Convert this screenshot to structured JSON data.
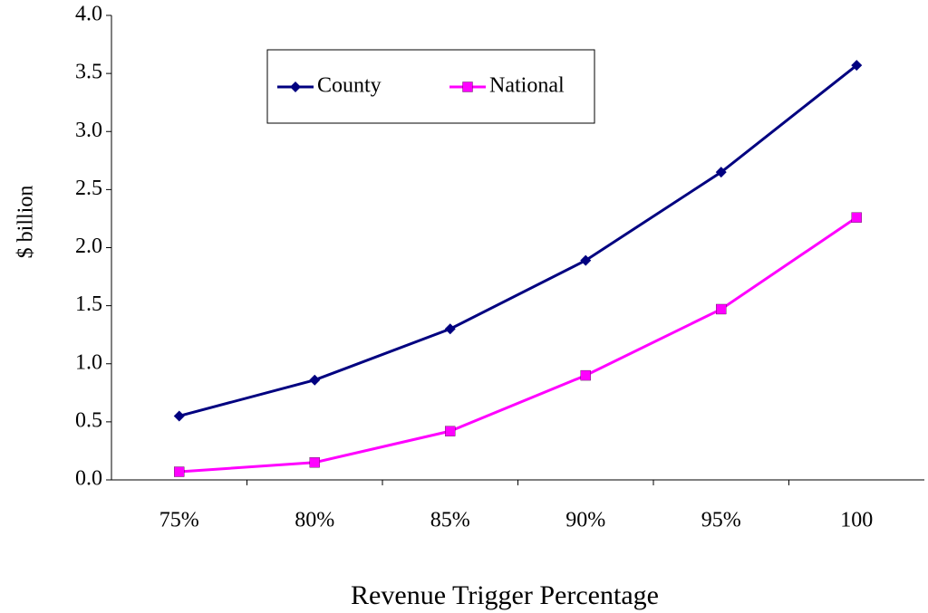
{
  "chart_data": {
    "type": "line",
    "y_label": "$ billion",
    "x_label": "Revenue Trigger Percentage",
    "categories": [
      "75%",
      "80%",
      "85%",
      "90%",
      "95%",
      "100"
    ],
    "series": [
      {
        "name": "County",
        "color": "#000080",
        "marker": "diamond",
        "values": [
          0.55,
          0.86,
          1.3,
          1.89,
          2.65,
          3.57
        ]
      },
      {
        "name": "National",
        "color": "#ff00ff",
        "marker": "square",
        "values": [
          0.07,
          0.15,
          0.42,
          0.9,
          1.47,
          2.26
        ]
      }
    ],
    "ylim": [
      0,
      4
    ],
    "yticks": [
      {
        "value": 0,
        "label": "0.0"
      },
      0.5,
      {
        "value": 1,
        "label": "1.0"
      },
      1.5,
      {
        "value": 2,
        "label": "2.0"
      },
      2.5,
      {
        "value": 3,
        "label": "3.0"
      },
      3.5,
      {
        "value": 4,
        "label": "4.0"
      }
    ],
    "grid": false,
    "legend": "top-left"
  }
}
